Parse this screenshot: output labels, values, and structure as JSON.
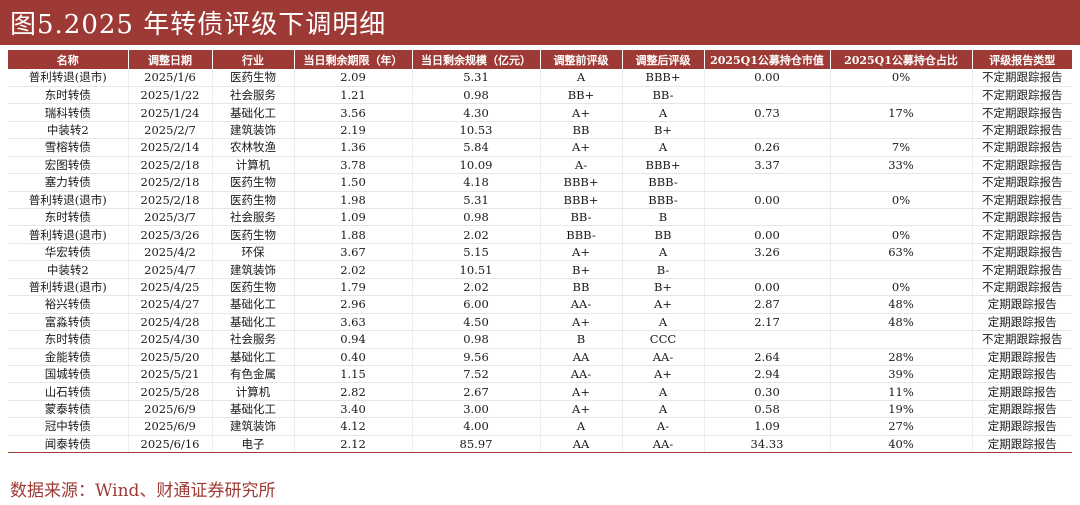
{
  "title": "图5.2025 年转债评级下调明细",
  "columns": [
    "名称",
    "调整日期",
    "行业",
    "当日剩余期限（年）",
    "当日剩余规模（亿元）",
    "调整前评级",
    "调整后评级",
    "2025Q1公募持仓市值",
    "2025Q1公募持仓占比",
    "评级报告类型"
  ],
  "rows": [
    [
      "普利转退(退市)",
      "2025/1/6",
      "医药生物",
      "2.09",
      "5.31",
      "A",
      "BBB+",
      "0.00",
      "0%",
      "不定期跟踪报告"
    ],
    [
      "东时转债",
      "2025/1/22",
      "社会服务",
      "1.21",
      "0.98",
      "BB+",
      "BB-",
      "",
      "",
      "不定期跟踪报告"
    ],
    [
      "瑞科转债",
      "2025/1/24",
      "基础化工",
      "3.56",
      "4.30",
      "A+",
      "A",
      "0.73",
      "17%",
      "不定期跟踪报告"
    ],
    [
      "中装转2",
      "2025/2/7",
      "建筑装饰",
      "2.19",
      "10.53",
      "BB",
      "B+",
      "",
      "",
      "不定期跟踪报告"
    ],
    [
      "雪榕转债",
      "2025/2/14",
      "农林牧渔",
      "1.36",
      "5.84",
      "A+",
      "A",
      "0.26",
      "7%",
      "不定期跟踪报告"
    ],
    [
      "宏图转债",
      "2025/2/18",
      "计算机",
      "3.78",
      "10.09",
      "A-",
      "BBB+",
      "3.37",
      "33%",
      "不定期跟踪报告"
    ],
    [
      "塞力转债",
      "2025/2/18",
      "医药生物",
      "1.50",
      "4.18",
      "BBB+",
      "BBB-",
      "",
      "",
      "不定期跟踪报告"
    ],
    [
      "普利转退(退市)",
      "2025/2/18",
      "医药生物",
      "1.98",
      "5.31",
      "BBB+",
      "BBB-",
      "0.00",
      "0%",
      "不定期跟踪报告"
    ],
    [
      "东时转债",
      "2025/3/7",
      "社会服务",
      "1.09",
      "0.98",
      "BB-",
      "B",
      "",
      "",
      "不定期跟踪报告"
    ],
    [
      "普利转退(退市)",
      "2025/3/26",
      "医药生物",
      "1.88",
      "2.02",
      "BBB-",
      "BB",
      "0.00",
      "0%",
      "不定期跟踪报告"
    ],
    [
      "华宏转债",
      "2025/4/2",
      "环保",
      "3.67",
      "5.15",
      "A+",
      "A",
      "3.26",
      "63%",
      "不定期跟踪报告"
    ],
    [
      "中装转2",
      "2025/4/7",
      "建筑装饰",
      "2.02",
      "10.51",
      "B+",
      "B-",
      "",
      "",
      "不定期跟踪报告"
    ],
    [
      "普利转退(退市)",
      "2025/4/25",
      "医药生物",
      "1.79",
      "2.02",
      "BB",
      "B+",
      "0.00",
      "0%",
      "不定期跟踪报告"
    ],
    [
      "裕兴转债",
      "2025/4/27",
      "基础化工",
      "2.96",
      "6.00",
      "AA-",
      "A+",
      "2.87",
      "48%",
      "定期跟踪报告"
    ],
    [
      "富淼转债",
      "2025/4/28",
      "基础化工",
      "3.63",
      "4.50",
      "A+",
      "A",
      "2.17",
      "48%",
      "定期跟踪报告"
    ],
    [
      "东时转债",
      "2025/4/30",
      "社会服务",
      "0.94",
      "0.98",
      "B",
      "CCC",
      "",
      "",
      "不定期跟踪报告"
    ],
    [
      "金能转债",
      "2025/5/20",
      "基础化工",
      "0.40",
      "9.56",
      "AA",
      "AA-",
      "2.64",
      "28%",
      "定期跟踪报告"
    ],
    [
      "国城转债",
      "2025/5/21",
      "有色金属",
      "1.15",
      "7.52",
      "AA-",
      "A+",
      "2.94",
      "39%",
      "定期跟踪报告"
    ],
    [
      "山石转债",
      "2025/5/28",
      "计算机",
      "2.82",
      "2.67",
      "A+",
      "A",
      "0.30",
      "11%",
      "定期跟踪报告"
    ],
    [
      "蒙泰转债",
      "2025/6/9",
      "基础化工",
      "3.40",
      "3.00",
      "A+",
      "A",
      "0.58",
      "19%",
      "定期跟踪报告"
    ],
    [
      "冠中转债",
      "2025/6/9",
      "建筑装饰",
      "4.12",
      "4.00",
      "A",
      "A-",
      "1.09",
      "27%",
      "定期跟踪报告"
    ],
    [
      "闻泰转债",
      "2025/6/16",
      "电子",
      "2.12",
      "85.97",
      "AA",
      "AA-",
      "34.33",
      "40%",
      "定期跟踪报告"
    ]
  ],
  "source": "数据来源：Wind、财通证券研究所",
  "colors": {
    "accent": "#9e3a35"
  }
}
